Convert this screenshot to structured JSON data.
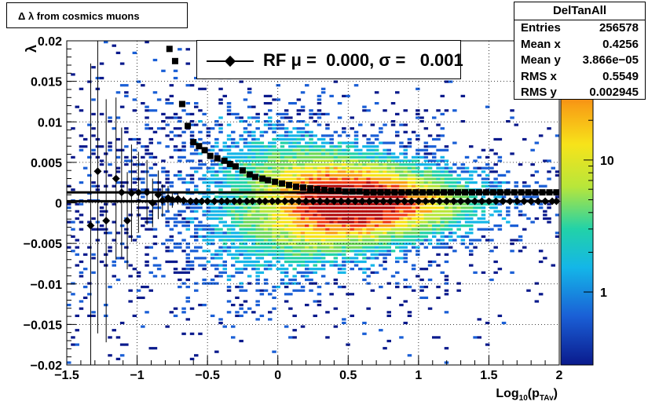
{
  "title_box": {
    "text": "Δ λ  from cosmics muons"
  },
  "stats": {
    "title": "DelTanAll",
    "rows": [
      {
        "label": "Entries",
        "value": "256578"
      },
      {
        "label": "Mean x",
        "value": "0.4256"
      },
      {
        "label": "Mean y",
        "value": "3.866e−05"
      },
      {
        "label": "RMS x",
        "value": "0.5549"
      },
      {
        "label": "RMS y",
        "value": "0.002945"
      }
    ]
  },
  "legend": {
    "text": "RF μ =  0.000, σ =   0.001"
  },
  "chart_data": {
    "type": "heatmap",
    "xlabel": "Log10(pTAv)",
    "ylabel": "λ",
    "xlim": [
      -1.5,
      2
    ],
    "ylim": [
      -0.02,
      0.02
    ],
    "log_z": true,
    "x_ticks": [
      "−1.5",
      "−1",
      "−0.5",
      "0",
      "0.5",
      "1",
      "1.5",
      "2"
    ],
    "y_ticks": [
      "−0.02",
      "−0.015",
      "−0.01",
      "−0.005",
      "0",
      "0.005",
      "0.01",
      "0.015",
      "0.02"
    ],
    "z_ticks": [
      "1",
      "10"
    ],
    "grid": true,
    "horizontal_lines": [
      0.0013,
      0.0002
    ],
    "series": [
      {
        "name": "RF",
        "marker": "diamond",
        "x": [
          -1.33,
          -1.28,
          -1.22,
          -1.15,
          -1.11,
          -1.07,
          -1.04,
          -0.99,
          -0.93,
          -0.89,
          -0.85,
          -0.82,
          -0.78,
          -0.75,
          -0.71,
          -0.67,
          -0.62,
          -0.58,
          -0.54,
          -0.5,
          -0.45,
          -0.4,
          -0.36,
          -0.31,
          -0.27,
          -0.22,
          -0.18,
          -0.13,
          -0.09,
          -0.04,
          0.0,
          0.05,
          0.1,
          0.15,
          0.2,
          0.25,
          0.3,
          0.35,
          0.4,
          0.45,
          0.5,
          0.55,
          0.6,
          0.65,
          0.7,
          0.75,
          0.8,
          0.85,
          0.9,
          0.95,
          1.0,
          1.05,
          1.1,
          1.15,
          1.2,
          1.25,
          1.3,
          1.35,
          1.4,
          1.45,
          1.5,
          1.55,
          1.6,
          1.65,
          1.7,
          1.75,
          1.8,
          1.85,
          1.9,
          1.95,
          1.98
        ],
        "y": [
          -0.0028,
          0.0039,
          -0.0022,
          0.003,
          0.0013,
          -0.0022,
          0.0012,
          0.0013,
          0.0013,
          0.0,
          0.001,
          0.0003,
          0.0006,
          0.0004,
          0.0005,
          0.0003,
          0.0002,
          0.0002,
          0.0002,
          0.0002,
          0.0002,
          0.0002,
          0.0002,
          0.0002,
          0.0002,
          0.0002,
          0.0002,
          0.0002,
          0.0002,
          0.0002,
          0.0002,
          0.0002,
          0.0002,
          0.0002,
          0.0002,
          0.0002,
          0.0002,
          0.0002,
          0.0002,
          0.0002,
          0.0002,
          0.0002,
          0.0002,
          0.0002,
          0.0002,
          0.0002,
          0.0002,
          0.0002,
          0.0002,
          0.0002,
          0.0002,
          0.0002,
          0.0002,
          0.0002,
          0.0002,
          0.0002,
          0.0002,
          0.0002,
          0.0002,
          0.0002,
          0.0002,
          0.0002,
          0.0002,
          0.0002,
          0.0002,
          0.0002,
          0.0002,
          0.0002,
          0.0002,
          0.0002,
          0.0002
        ],
        "err": [
          0.02,
          0.02,
          0.015,
          0.01,
          0.008,
          0.006,
          0.006,
          0.005,
          0.004,
          0.003,
          0.003,
          0.002,
          0.0015,
          0.001,
          0.0007,
          0.0005,
          0.0003,
          0.0002,
          0.0002,
          0.0001,
          0.0001,
          0.0001,
          0.0001,
          0.0001,
          0.0001,
          0.0001,
          0.0001,
          0.0001,
          0.0001,
          0.0001,
          0.0001,
          0.0001,
          0.0001,
          0.0001,
          0.0001,
          0.0001,
          0.0001,
          0.0001,
          0.0001,
          0.0001,
          0.0001,
          0.0001,
          0.0001,
          0.0001,
          0.0001,
          0.0001,
          0.0001,
          0.0001,
          0.0001,
          0.0001,
          0.0001,
          0.0001,
          0.0001,
          0.0001,
          0.0001,
          0.0001,
          0.0001,
          0.0001,
          0.0001,
          0.0001,
          0.0001,
          0.0001,
          0.0001,
          0.0001,
          0.0001,
          0.0001,
          0.0001,
          0.0001,
          0.0001,
          0.0001,
          0.0001
        ]
      },
      {
        "name": "sigma",
        "marker": "square",
        "x": [
          -0.77,
          -0.73,
          -0.68,
          -0.64,
          -0.6,
          -0.56,
          -0.52,
          -0.48,
          -0.43,
          -0.38,
          -0.34,
          -0.3,
          -0.25,
          -0.2,
          -0.16,
          -0.11,
          -0.07,
          -0.02,
          0.03,
          0.08,
          0.13,
          0.18,
          0.23,
          0.28,
          0.33,
          0.38,
          0.43,
          0.48,
          0.53,
          0.58,
          0.63,
          0.68,
          0.73,
          0.78,
          0.83,
          0.88,
          0.93,
          0.98,
          1.03,
          1.08,
          1.13,
          1.18,
          1.23,
          1.28,
          1.33,
          1.38,
          1.43,
          1.48,
          1.53,
          1.58,
          1.63,
          1.68,
          1.73,
          1.78,
          1.83,
          1.88,
          1.93,
          1.98
        ],
        "y": [
          0.019,
          0.0175,
          0.0122,
          0.0095,
          0.0075,
          0.007,
          0.0065,
          0.0058,
          0.0055,
          0.0052,
          0.0048,
          0.0045,
          0.004,
          0.0035,
          0.0032,
          0.003,
          0.0028,
          0.0026,
          0.0024,
          0.0022,
          0.002,
          0.0019,
          0.0018,
          0.0017,
          0.0016,
          0.0015,
          0.0015,
          0.0014,
          0.0014,
          0.0014,
          0.0013,
          0.0013,
          0.0013,
          0.0013,
          0.0013,
          0.0013,
          0.0013,
          0.0013,
          0.0013,
          0.0013,
          0.0013,
          0.0013,
          0.0013,
          0.0013,
          0.0013,
          0.0013,
          0.0013,
          0.0013,
          0.0013,
          0.0013,
          0.0013,
          0.0013,
          0.0013,
          0.0013,
          0.0013,
          0.0013,
          0.0013,
          0.0013
        ]
      }
    ]
  }
}
